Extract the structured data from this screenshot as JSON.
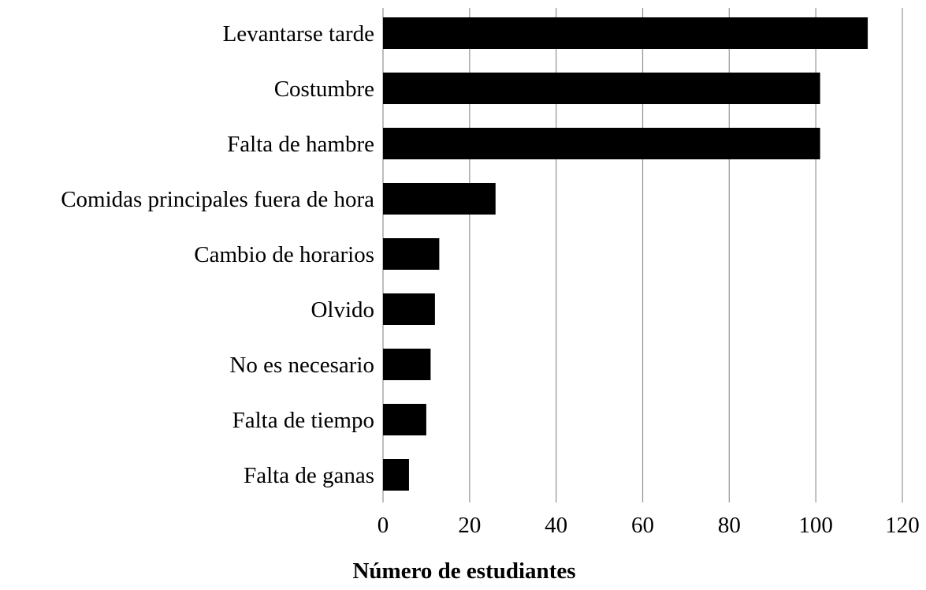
{
  "chart_data": {
    "type": "bar",
    "orientation": "horizontal",
    "title": "",
    "xlabel": "Número de estudiantes",
    "ylabel": "",
    "categories": [
      "Levantarse tarde",
      "Costumbre",
      "Falta de hambre",
      "Comidas principales fuera de hora",
      "Cambio de horarios",
      "Olvido",
      "No es necesario",
      "Falta de tiempo",
      "Falta de ganas"
    ],
    "values": [
      112,
      101,
      101,
      26,
      13,
      12,
      11,
      10,
      6
    ],
    "xlim": [
      0,
      120
    ],
    "xticks": [
      "0",
      "20",
      "40",
      "60",
      "80",
      "100",
      "120"
    ],
    "grid": "vertical",
    "legend": "none",
    "colors": {
      "bar": "#000000",
      "grid": "#9a9a9a",
      "background": "#ffffff"
    }
  }
}
